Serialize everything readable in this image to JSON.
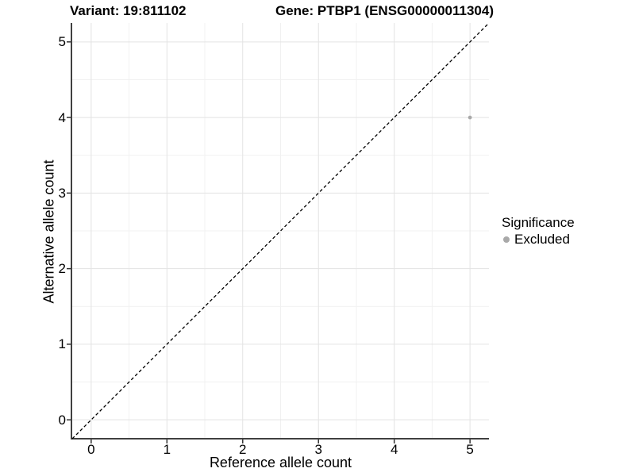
{
  "header": {
    "title_left": "Variant: 19:811102",
    "title_right": "Gene: PTBP1 (ENSG00000011304)"
  },
  "chart_data": {
    "type": "scatter",
    "title": "Variant: 19:811102  Gene: PTBP1 (ENSG00000011304)",
    "xlabel": "Reference allele count",
    "ylabel": "Alternative allele count",
    "xlim": [
      -0.25,
      5.25
    ],
    "ylim": [
      -0.25,
      5.25
    ],
    "xticks": [
      0,
      1,
      2,
      3,
      4,
      5
    ],
    "yticks": [
      0,
      1,
      2,
      3,
      4,
      5
    ],
    "minor_xticks": [
      0.5,
      1.5,
      2.5,
      3.5,
      4.5
    ],
    "minor_yticks": [
      0.5,
      1.5,
      2.5,
      3.5,
      4.5
    ],
    "grid": "major+minor",
    "points": [
      {
        "x": 5,
        "y": 4,
        "series": "Excluded"
      }
    ],
    "reference_line": {
      "slope": 1,
      "intercept": 0,
      "style": "dashed"
    },
    "legend": {
      "title": "Significance",
      "position": "right",
      "items": [
        {
          "label": "Excluded",
          "color": "#a9a9a9"
        }
      ]
    }
  },
  "colors": {
    "background": "#ffffff",
    "text": "#000000",
    "grid_major": "#e3e3e3",
    "grid_minor": "#f1f1f1",
    "axis_line": "#404040",
    "tick_mark": "#333333",
    "reference_line": "#000000",
    "point": "#a9a9a9"
  }
}
